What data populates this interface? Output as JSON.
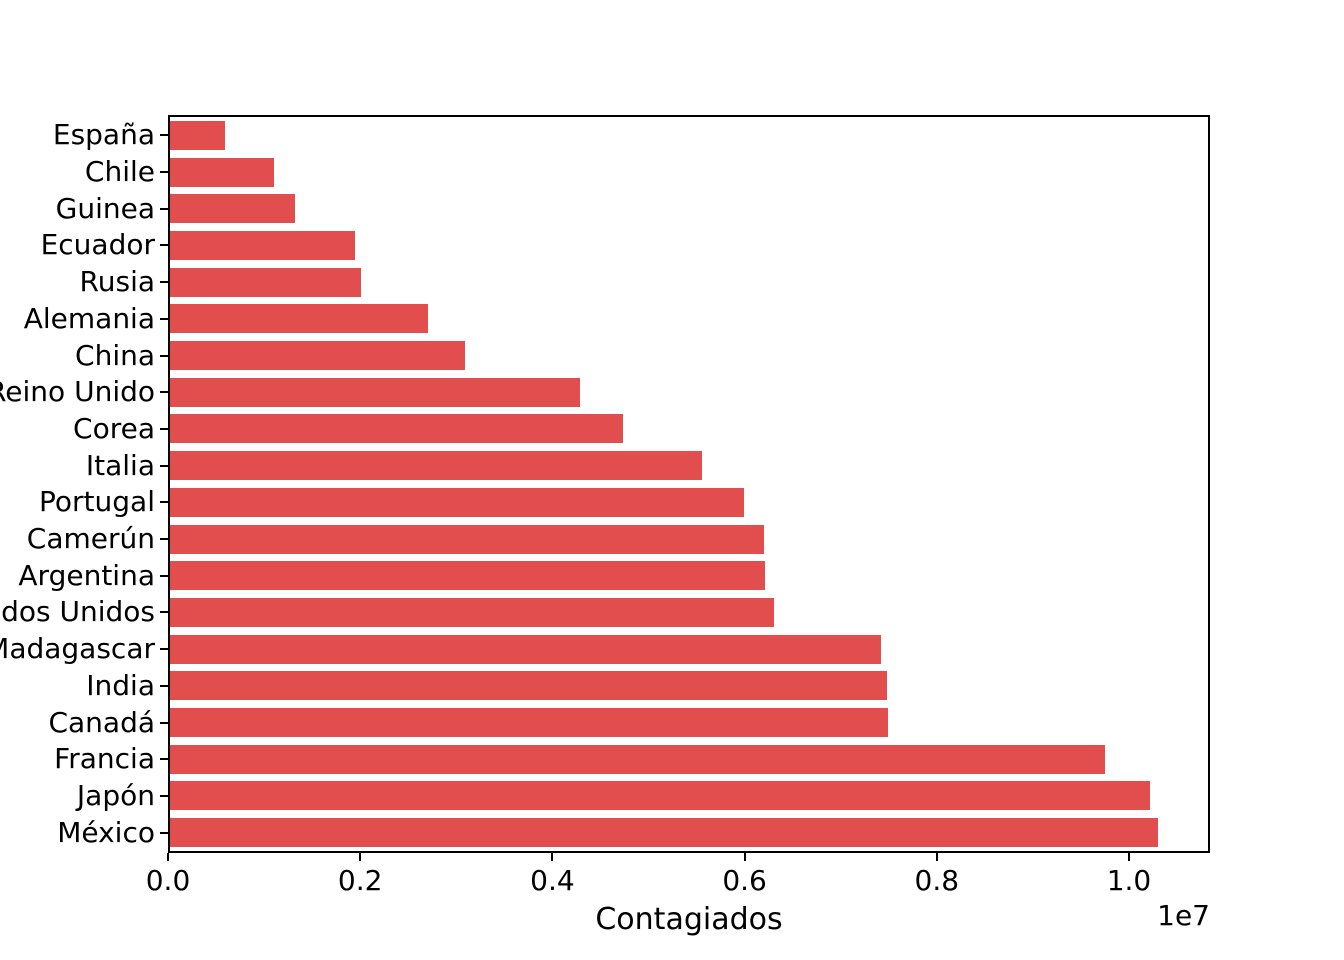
{
  "figure": {
    "background": "#ffffff",
    "bar_color": "#e24d4d",
    "axis_color": "#000000"
  },
  "chart_data": {
    "type": "bar",
    "orientation": "horizontal",
    "title": "",
    "xlabel": "Contagiados",
    "ylabel": "",
    "x_offset_label": "1e7",
    "xlim": [
      0,
      10843000
    ],
    "x_ticks": [
      0,
      2000000,
      4000000,
      6000000,
      8000000,
      10000000
    ],
    "x_tick_labels": [
      "0.0",
      "0.2",
      "0.4",
      "0.6",
      "0.8",
      "1.0"
    ],
    "grid": false,
    "legend": null,
    "categories": [
      "España",
      "Chile",
      "Guinea",
      "Ecuador",
      "Rusia",
      "Alemania",
      "China",
      "Reino Unido",
      "Corea",
      "Italia",
      "Portugal",
      "Camerún",
      "Argentina",
      "Estados Unidos",
      "Madagascar",
      "India",
      "Canadá",
      "Francia",
      "Japón",
      "México"
    ],
    "values": [
      570000,
      1090000,
      1310000,
      1930000,
      2000000,
      2700000,
      3080000,
      4280000,
      4730000,
      5560000,
      6000000,
      6200000,
      6220000,
      6310000,
      7430000,
      7490000,
      7500000,
      9770000,
      10240000,
      10320000
    ]
  }
}
